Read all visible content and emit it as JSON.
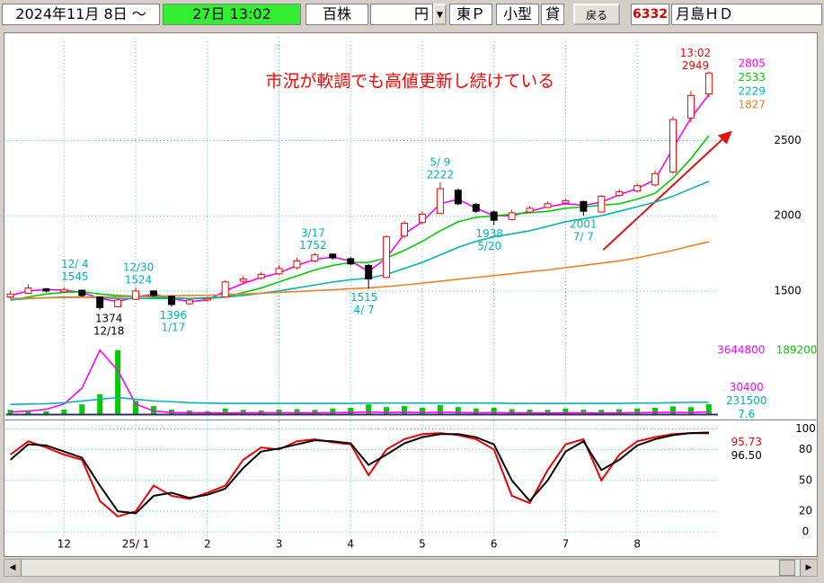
{
  "toolbar": {
    "start": "2024年11月 8日 ～",
    "end": "27日 13:02",
    "unit": "百株",
    "currency": "円",
    "market": "東Ｐ",
    "size": "小型",
    "margin": "貸",
    "back": "戻る",
    "code": "6332",
    "name": "月島ＨＤ"
  },
  "chart_data": [
    {
      "type": "candlestick",
      "title": "市況が軟調でも高値更新し続けている",
      "categories": [
        null,
        null,
        null,
        "12",
        null,
        null,
        null,
        "25/ 1",
        null,
        null,
        null,
        "2",
        null,
        null,
        null,
        "3",
        null,
        null,
        null,
        "4",
        null,
        null,
        null,
        "5",
        null,
        null,
        null,
        "6",
        null,
        null,
        null,
        "7",
        null,
        null,
        null,
        "8",
        null,
        null,
        null,
        null
      ],
      "open": [
        1460,
        1485,
        1515,
        1495,
        1505,
        1460,
        1395,
        1445,
        1500,
        1465,
        1415,
        1440,
        1460,
        1565,
        1585,
        1615,
        1655,
        1700,
        1745,
        1715,
        1670,
        1590,
        1865,
        1955,
        2015,
        2170,
        2075,
        2025,
        1975,
        2025,
        2055,
        2085,
        2095,
        2025,
        2135,
        2165,
        2205,
        2290,
        2650,
        2810
      ],
      "high": [
        1500,
        1545,
        1520,
        1525,
        1510,
        1465,
        1450,
        1524,
        1505,
        1470,
        1450,
        1460,
        1570,
        1600,
        1625,
        1670,
        1720,
        1752,
        1750,
        1725,
        1680,
        1870,
        1965,
        2030,
        2222,
        2180,
        2085,
        2035,
        2040,
        2065,
        2095,
        2115,
        2100,
        2140,
        2175,
        2215,
        2300,
        2660,
        2830,
        2960
      ],
      "low": [
        1450,
        1480,
        1490,
        1490,
        1460,
        1374,
        1390,
        1440,
        1460,
        1396,
        1410,
        1430,
        1455,
        1555,
        1575,
        1605,
        1645,
        1690,
        1710,
        1670,
        1515,
        1585,
        1850,
        1945,
        2010,
        2070,
        2020,
        1938,
        1970,
        2020,
        2050,
        2075,
        2001,
        2020,
        2125,
        2155,
        2195,
        2280,
        2620,
        2790
      ],
      "close": [
        1480,
        1520,
        1500,
        1510,
        1470,
        1390,
        1440,
        1500,
        1470,
        1410,
        1440,
        1450,
        1560,
        1580,
        1610,
        1650,
        1700,
        1740,
        1720,
        1680,
        1580,
        1860,
        1950,
        2010,
        2180,
        2080,
        2030,
        1970,
        2020,
        2050,
        2080,
        2100,
        2030,
        2130,
        2160,
        2200,
        2280,
        2640,
        2800,
        2949
      ],
      "up_color": "#ff0000",
      "down_color": "#000000",
      "series": [
        {
          "color": "#ff00ff",
          "values": [
            1470,
            1500,
            1510,
            1505,
            1490,
            1450,
            1430,
            1460,
            1480,
            1450,
            1430,
            1440,
            1500,
            1550,
            1590,
            1620,
            1670,
            1710,
            1725,
            1700,
            1630,
            1720,
            1880,
            1960,
            2080,
            2110,
            2050,
            2000,
            2000,
            2030,
            2060,
            2080,
            2070,
            2090,
            2140,
            2180,
            2240,
            2450,
            2650,
            2805
          ]
        },
        {
          "color": "#00cc00",
          "values": [
            1440,
            1460,
            1480,
            1490,
            1495,
            1480,
            1470,
            1465,
            1460,
            1455,
            1450,
            1450,
            1460,
            1490,
            1520,
            1560,
            1600,
            1640,
            1670,
            1690,
            1690,
            1720,
            1770,
            1830,
            1900,
            1960,
            1990,
            2000,
            2010,
            2020,
            2030,
            2050,
            2060,
            2070,
            2080,
            2110,
            2150,
            2250,
            2380,
            2533
          ]
        },
        {
          "color": "#00b4b4",
          "values": [
            1440,
            1450,
            1455,
            1460,
            1460,
            1455,
            1450,
            1450,
            1450,
            1450,
            1450,
            1455,
            1460,
            1470,
            1485,
            1500,
            1520,
            1540,
            1560,
            1575,
            1585,
            1610,
            1650,
            1690,
            1740,
            1790,
            1830,
            1860,
            1880,
            1900,
            1930,
            1960,
            1980,
            2000,
            2030,
            2060,
            2090,
            2130,
            2180,
            2229
          ]
        },
        {
          "color": "#f08020",
          "values": [
            1450,
            1452,
            1454,
            1456,
            1458,
            1460,
            1462,
            1464,
            1466,
            1468,
            1470,
            1472,
            1475,
            1480,
            1485,
            1490,
            1496,
            1502,
            1508,
            1515,
            1520,
            1530,
            1540,
            1552,
            1565,
            1578,
            1590,
            1602,
            1615,
            1628,
            1640,
            1655,
            1670,
            1685,
            1700,
            1720,
            1745,
            1770,
            1800,
            1827
          ]
        }
      ],
      "annotations": [
        {
          "date": "12/ 4",
          "price": 1545,
          "color": "#00b4b4"
        },
        {
          "date": "12/30",
          "price": 1524,
          "color": "#00b4b4"
        },
        {
          "date": "12/18",
          "price": 1374,
          "color": "#000000"
        },
        {
          "date": "1/17",
          "price": 1396,
          "color": "#00b4b4"
        },
        {
          "date": "3/17",
          "price": 1752,
          "color": "#00b4b4"
        },
        {
          "date": "4/ 7",
          "price": 1515,
          "color": "#00b4b4"
        },
        {
          "date": "5/ 9",
          "price": 2222,
          "color": "#00b4b4"
        },
        {
          "date": "5/20",
          "price": 1938,
          "color": "#00b4b4"
        },
        {
          "date": "7/ 7",
          "price": 2001,
          "color": "#00b4b4"
        },
        {
          "date": "13:02",
          "price": 2949,
          "color": "#ff0000"
        }
      ],
      "ylim": [
        1315,
        3160
      ],
      "yticks": [
        1500,
        2000,
        2500
      ],
      "grid": true
    },
    {
      "type": "bar",
      "color": "#00cc00",
      "values": [
        14000,
        12000,
        10000,
        15000,
        30000,
        60000,
        189200,
        40000,
        25000,
        15000,
        12000,
        10000,
        18000,
        14000,
        12000,
        15000,
        16000,
        14000,
        18000,
        20000,
        30000,
        22000,
        25000,
        20000,
        28000,
        22000,
        18000,
        20000,
        16000,
        15000,
        14000,
        18000,
        15000,
        14000,
        16000,
        18000,
        20000,
        24000,
        22000,
        30400
      ],
      "series": [
        {
          "color": "#ff00ff",
          "axis": "y2",
          "values": [
            150000,
            200000,
            300000,
            600000,
            1500000,
            3644800,
            2500000,
            600000,
            200000,
            120000,
            100000,
            100000,
            90000,
            100000,
            100000,
            110000,
            100000,
            100000,
            110000,
            120000,
            150000,
            120000,
            130000,
            110000,
            140000,
            120000,
            100000,
            110000,
            100000,
            100000,
            90000,
            100000,
            100000,
            90000,
            100000,
            110000,
            120000,
            130000,
            120000,
            150000
          ]
        },
        {
          "color": "#00b4b4",
          "values": [
            30000,
            31000,
            32000,
            35000,
            40000,
            45000,
            50000,
            45000,
            40000,
            38000,
            35000,
            34000,
            33000,
            33000,
            33000,
            33000,
            33000,
            33000,
            33000,
            33000,
            34000,
            34000,
            34000,
            34000,
            34000,
            34000,
            34000,
            34000,
            33000,
            33000,
            33000,
            33000,
            33000,
            33000,
            33000,
            34000,
            34000,
            35000,
            36000,
            36000
          ]
        }
      ],
      "readouts": [
        30400,
        231500,
        7.6
      ],
      "ylim": [
        0,
        189200
      ],
      "yticks": [
        189200
      ],
      "y2lim": [
        0,
        3644800
      ],
      "y2ticks": [
        3644800
      ]
    },
    {
      "type": "line",
      "series": [
        {
          "color": "#ee0000",
          "values": [
            75,
            88,
            82,
            75,
            70,
            30,
            15,
            20,
            45,
            35,
            32,
            38,
            45,
            70,
            82,
            80,
            88,
            90,
            87,
            85,
            55,
            80,
            90,
            95,
            96,
            94,
            90,
            80,
            35,
            28,
            60,
            85,
            90,
            50,
            75,
            88,
            92,
            95,
            96,
            95.73
          ]
        },
        {
          "color": "#000000",
          "values": [
            70,
            85,
            84,
            78,
            72,
            45,
            20,
            18,
            35,
            38,
            33,
            36,
            42,
            62,
            78,
            81,
            85,
            89,
            88,
            86,
            65,
            75,
            86,
            92,
            95,
            95,
            92,
            85,
            50,
            30,
            50,
            78,
            88,
            60,
            70,
            84,
            90,
            94,
            96,
            96.5
          ],
          "value_labels": [
            null,
            null,
            null,
            null,
            null,
            null,
            null,
            null,
            null,
            null,
            null,
            null,
            null,
            null,
            null,
            null,
            null,
            null,
            null,
            null,
            null,
            null,
            null,
            null,
            null,
            null,
            null,
            null,
            null,
            null,
            null,
            null,
            null,
            null,
            null,
            null,
            null,
            null,
            null,
            "96.50"
          ]
        }
      ],
      "ylim": [
        0,
        100
      ],
      "yticks": [
        0,
        20,
        50,
        80,
        100
      ],
      "grid": true
    }
  ]
}
